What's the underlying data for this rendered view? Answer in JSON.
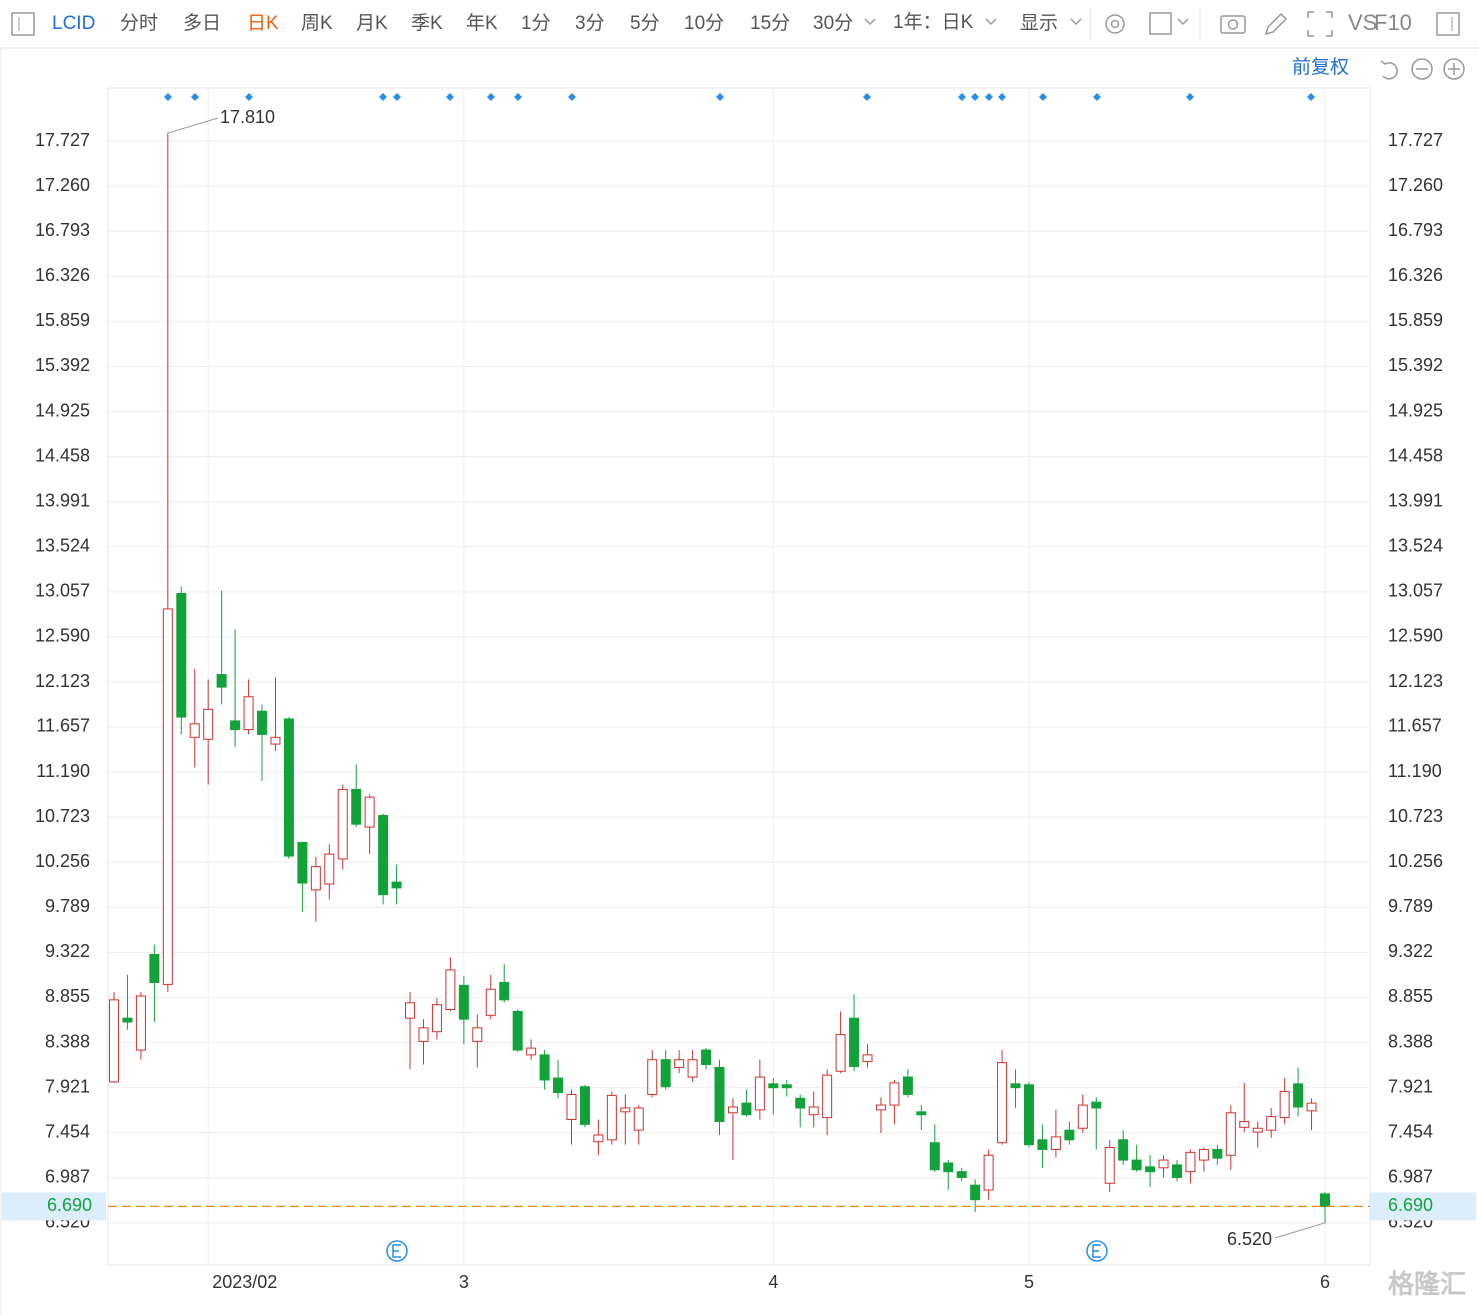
{
  "toolbar": {
    "symbol": "LCID",
    "periods": [
      "分时",
      "多日",
      "日K",
      "周K",
      "月K",
      "季K",
      "年K",
      "1分",
      "3分",
      "5分",
      "10分",
      "15分",
      "30分"
    ],
    "range": "1年：日K",
    "display": "显示",
    "vs": "VS",
    "f10": "F10",
    "adjust": "前复权",
    "watermark": "格隆汇"
  },
  "chart_data": {
    "type": "candlestick",
    "categories": [
      null,
      null,
      null,
      null,
      null,
      null,
      null,
      "2023/02",
      null,
      null,
      null,
      null,
      null,
      null,
      null,
      null,
      null,
      null,
      null,
      null,
      null,
      null,
      null,
      null,
      null,
      null,
      "3",
      null,
      null,
      null,
      null,
      null,
      null,
      null,
      null,
      null,
      null,
      null,
      null,
      null,
      null,
      null,
      null,
      null,
      null,
      null,
      null,
      null,
      null,
      "4",
      null,
      null,
      null,
      null,
      null,
      null,
      null,
      null,
      null,
      null,
      null,
      null,
      null,
      null,
      null,
      null,
      null,
      null,
      "5",
      null,
      null,
      null,
      null,
      null,
      null,
      null,
      null,
      null,
      null,
      null,
      null,
      null,
      null,
      null,
      null,
      null,
      null,
      null,
      null,
      null,
      "6"
    ],
    "open": [
      7.98,
      8.64,
      8.31,
      9.3,
      8.99,
      13.04,
      11.55,
      11.53,
      12.2,
      11.72,
      11.63,
      11.82,
      11.48,
      11.74,
      10.46,
      9.97,
      10.03,
      10.29,
      11.01,
      10.62,
      10.74,
      10.05,
      8.64,
      8.4,
      8.5,
      8.73,
      8.98,
      8.4,
      8.67,
      9.01,
      8.71,
      8.26,
      8.26,
      8.02,
      7.59,
      7.93,
      7.36,
      7.38,
      7.67,
      7.48,
      7.85,
      8.21,
      8.13,
      8.03,
      8.31,
      8.13,
      7.66,
      7.76,
      7.69,
      7.96,
      7.95,
      7.81,
      7.64,
      7.61,
      8.09,
      8.64,
      8.19,
      7.69,
      7.74,
      8.03,
      7.67,
      7.35,
      7.14,
      7.05,
      6.91,
      6.86,
      7.35,
      7.96,
      7.95,
      7.38,
      7.28,
      7.48,
      7.5,
      7.77,
      6.93,
      7.38,
      7.17,
      7.1,
      7.09,
      7.12,
      7.05,
      7.17,
      7.28,
      7.22,
      7.51,
      7.46,
      7.48,
      7.61,
      7.96,
      7.68,
      6.82
    ],
    "high": [
      8.91,
      9.09,
      8.91,
      9.4,
      17.81,
      13.11,
      12.26,
      12.15,
      13.07,
      12.67,
      12.15,
      11.89,
      12.17,
      11.76,
      10.47,
      10.31,
      10.44,
      11.06,
      11.27,
      10.96,
      10.76,
      10.23,
      8.91,
      8.63,
      8.85,
      9.27,
      9.08,
      8.68,
      9.09,
      9.2,
      8.73,
      8.42,
      8.31,
      8.21,
      7.9,
      7.95,
      7.59,
      7.88,
      7.85,
      7.74,
      8.31,
      8.31,
      8.31,
      8.31,
      8.33,
      8.21,
      7.81,
      7.9,
      8.21,
      8.02,
      8.0,
      7.85,
      7.88,
      8.11,
      8.71,
      8.89,
      8.37,
      7.82,
      8.0,
      8.11,
      7.74,
      7.54,
      7.17,
      7.09,
      6.97,
      7.28,
      8.31,
      8.11,
      7.98,
      7.54,
      7.69,
      7.57,
      7.85,
      7.82,
      7.38,
      7.48,
      7.33,
      7.22,
      7.22,
      7.17,
      7.28,
      7.3,
      7.33,
      7.74,
      7.97,
      7.57,
      7.71,
      8.02,
      8.13,
      7.81,
      6.84
    ],
    "low": [
      7.97,
      8.52,
      8.21,
      8.6,
      8.91,
      11.58,
      11.24,
      11.06,
      11.89,
      11.45,
      11.58,
      11.1,
      11.41,
      10.29,
      9.74,
      9.64,
      9.87,
      10.18,
      10.62,
      10.34,
      9.82,
      9.82,
      8.11,
      8.16,
      8.42,
      8.71,
      8.37,
      8.13,
      8.63,
      8.8,
      8.29,
      8.21,
      7.9,
      7.81,
      7.33,
      7.51,
      7.22,
      7.33,
      7.33,
      7.33,
      7.82,
      7.9,
      8.07,
      7.98,
      8.11,
      7.43,
      7.17,
      7.62,
      7.59,
      7.64,
      7.83,
      7.51,
      7.51,
      7.43,
      8.07,
      8.09,
      8.13,
      7.45,
      7.54,
      7.82,
      7.48,
      7.05,
      6.86,
      6.95,
      6.63,
      6.76,
      7.33,
      7.71,
      7.3,
      7.09,
      7.2,
      7.33,
      7.45,
      7.28,
      6.84,
      7.12,
      7.05,
      6.89,
      6.99,
      6.95,
      6.93,
      7.05,
      7.12,
      7.07,
      7.46,
      7.3,
      7.4,
      7.54,
      7.62,
      7.48,
      6.52
    ],
    "close": [
      8.83,
      8.6,
      8.87,
      9.01,
      12.88,
      11.76,
      11.69,
      11.84,
      12.07,
      11.63,
      11.97,
      11.58,
      11.55,
      10.32,
      10.04,
      10.21,
      10.34,
      11.01,
      10.65,
      10.93,
      9.92,
      9.99,
      8.8,
      8.54,
      8.78,
      9.14,
      8.63,
      8.54,
      8.94,
      8.83,
      8.31,
      8.33,
      8.0,
      7.87,
      7.85,
      7.54,
      7.43,
      7.84,
      7.71,
      7.71,
      8.21,
      7.93,
      8.21,
      8.21,
      8.16,
      7.57,
      7.72,
      7.64,
      8.03,
      7.92,
      7.92,
      7.71,
      7.72,
      8.05,
      8.47,
      8.14,
      8.26,
      7.74,
      7.97,
      7.85,
      7.64,
      7.07,
      7.05,
      6.99,
      6.76,
      7.22,
      8.18,
      7.92,
      7.33,
      7.28,
      7.41,
      7.38,
      7.74,
      7.71,
      7.3,
      7.17,
      7.07,
      7.05,
      7.17,
      6.99,
      7.25,
      7.28,
      7.19,
      7.66,
      7.57,
      7.5,
      7.62,
      7.88,
      7.72,
      7.76,
      6.69
    ],
    "up_color": "#d0312d",
    "down_color": "#12a23a",
    "ylim": [
      6.083,
      18.277
    ],
    "yticks": [
      {
        "value": 6.52,
        "label": "6.520"
      },
      6.987,
      7.454,
      7.921,
      8.388,
      8.855,
      9.322,
      9.789,
      10.256,
      10.723,
      {
        "value": 11.19,
        "label": "11.190"
      },
      11.657,
      12.123,
      {
        "value": 12.59,
        "label": "12.590"
      },
      13.057,
      13.524,
      13.991,
      14.458,
      14.925,
      15.392,
      15.859,
      16.326,
      16.793,
      {
        "value": 17.26,
        "label": "17.260"
      },
      17.727
    ],
    "grid": true,
    "max_label": {
      "value": 17.81,
      "label": "17.810"
    },
    "min_label": {
      "value": 6.52,
      "label": "6.520"
    },
    "last_price": {
      "value": 6.69,
      "label": "6.690"
    }
  }
}
